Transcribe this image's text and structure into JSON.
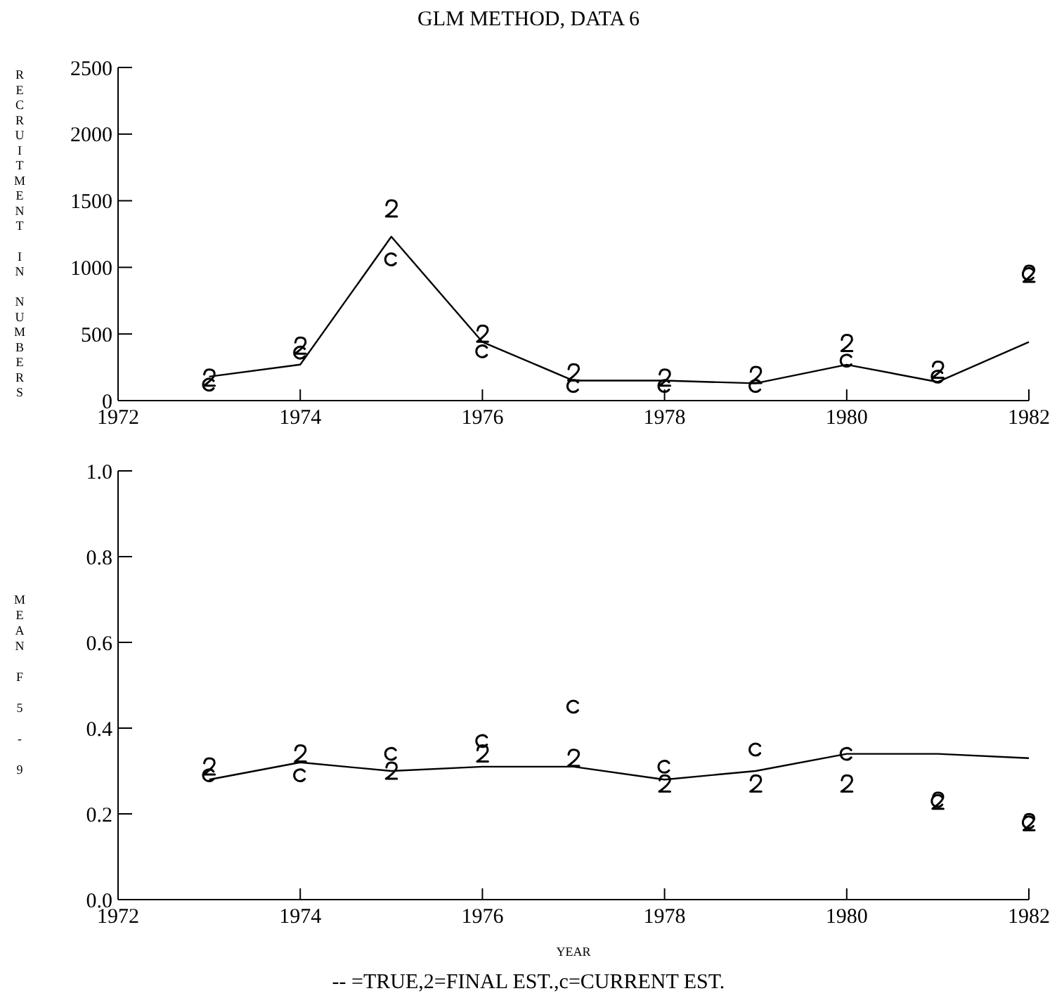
{
  "chart_data": [
    {
      "type": "line",
      "title": "GLM METHOD, DATA 6",
      "ylabel": "RECRUITMENT IN NUMBERS",
      "x": [
        1973,
        1974,
        1975,
        1976,
        1977,
        1978,
        1979,
        1980,
        1981,
        1982
      ],
      "xlim": [
        1972,
        1982
      ],
      "xticks": [
        1972,
        1974,
        1976,
        1978,
        1980,
        1982
      ],
      "ylim": [
        0,
        2500
      ],
      "yticks": [
        0,
        500,
        1000,
        1500,
        2000,
        2500
      ],
      "grid": false,
      "legend": false,
      "series": [
        {
          "color": "#000000",
          "marker": "none",
          "values": [
            180,
            270,
            1230,
            440,
            150,
            150,
            130,
            270,
            140,
            440
          ]
        },
        {
          "type": "scatter",
          "color": "#000000",
          "values": [
            170,
            410,
            1440,
            500,
            210,
            170,
            190,
            430,
            230,
            950
          ]
        },
        {
          "type": "scatter",
          "color": "#000000",
          "values": [
            120,
            360,
            1060,
            370,
            110,
            110,
            110,
            300,
            180,
            950
          ]
        }
      ]
    },
    {
      "type": "line",
      "ylabel": "MEAN F 5 - 9",
      "xlabel": "YEAR",
      "annotations": [
        "-- =TRUE,2=FINAL EST.,c=CURRENT EST."
      ],
      "x": [
        1973,
        1974,
        1975,
        1976,
        1977,
        1978,
        1979,
        1980,
        1981,
        1982
      ],
      "xlim": [
        1972,
        1982
      ],
      "xticks": [
        1972,
        1974,
        1976,
        1978,
        1980,
        1982
      ],
      "ylim": [
        0,
        1
      ],
      "yticks": [
        {
          "value": 0,
          "label": "0.0"
        },
        {
          "value": 0.2,
          "label": "0.2"
        },
        {
          "value": 0.4,
          "label": "0.4"
        },
        {
          "value": 0.6,
          "label": "0.6"
        },
        {
          "value": 0.8,
          "label": "0.8"
        },
        {
          "value": 1,
          "label": "1.0"
        }
      ],
      "grid": false,
      "legend": false,
      "series": [
        {
          "color": "#000000",
          "marker": "none",
          "values": [
            0.28,
            0.32,
            0.3,
            0.31,
            0.31,
            0.28,
            0.3,
            0.34,
            0.34,
            0.33
          ]
        },
        {
          "type": "scatter",
          "color": "#000000",
          "values": [
            0.31,
            0.34,
            0.3,
            0.34,
            0.33,
            0.27,
            0.27,
            0.27,
            0.23,
            0.18
          ]
        },
        {
          "type": "scatter",
          "color": "#000000",
          "values": [
            0.29,
            0.29,
            0.34,
            0.37,
            0.45,
            0.31,
            0.35,
            0.34,
            0.23,
            0.18
          ]
        }
      ]
    }
  ]
}
